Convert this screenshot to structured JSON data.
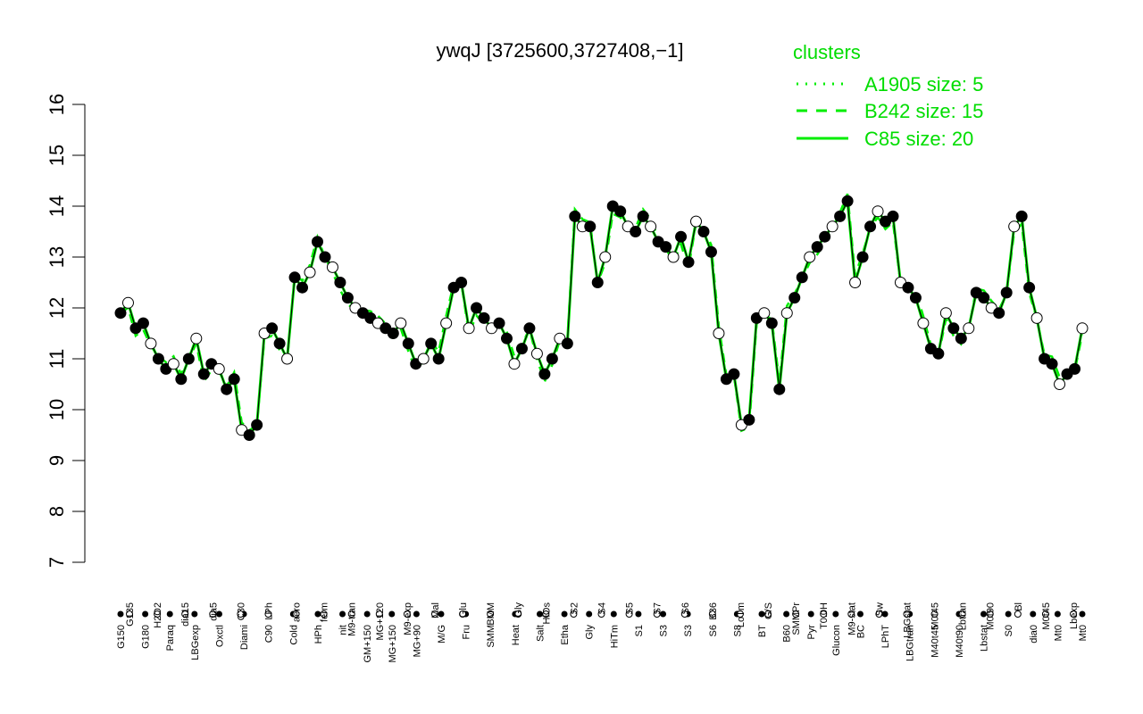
{
  "chart_data": {
    "type": "line",
    "title": "ywqJ [3725600,3727408,−1]",
    "xlabel": "",
    "ylabel": "",
    "ylim": [
      7,
      16
    ],
    "yticks": [
      "7",
      "8",
      "9",
      "10",
      "11",
      "12",
      "13",
      "14",
      "15",
      "16"
    ],
    "grid": false,
    "legend": {
      "title": "clusters",
      "position": "top-right",
      "entries": [
        {
          "label": "A1905 size: 5",
          "style": "dotted"
        },
        {
          "label": "B242 size: 15",
          "style": "dashed"
        },
        {
          "label": "C85 size: 20",
          "style": "solid"
        }
      ]
    },
    "colors": {
      "line": "#00ee00",
      "points": "#000000",
      "axis": "#000000"
    },
    "x_labels_lower": [
      "G150",
      "G180",
      "Paraq",
      "LBGexp",
      "Oxctl",
      "Diami",
      "C90",
      "Cold",
      "HPh",
      "nit",
      "GM+150",
      "MG+150",
      "MG+90",
      "M/G",
      "Fru",
      "SMM",
      "Heat",
      "Salt",
      "Etha",
      "Gly",
      "HiTm",
      "S1",
      "S3",
      "S3",
      "S6",
      "S8",
      "BT",
      "B60",
      "Pyr",
      "Glucon",
      "BC",
      "LPhT",
      "LBGtran",
      "M40t45",
      "M40t90",
      "Lbstat",
      "S0",
      "dia0",
      "Mt0",
      "Mt0"
    ],
    "x_labels_upper": [
      "G135",
      "H2O2",
      "dia15",
      "dia5",
      "C30",
      "LPh",
      "aero",
      "ferm",
      "M9-tran",
      "MG+120",
      "M9-exp",
      "Mal",
      "Glu",
      "BMM",
      "Gly",
      "HiOs",
      "S2",
      "S4",
      "S5",
      "S7",
      "S6",
      "B36",
      "LoTm",
      "G/S",
      "SMMPr",
      "T0.0H",
      "M9-stat",
      "Sw",
      "LBGstat",
      "M0t45",
      "Lbtran",
      "M0t90",
      "Bl",
      "M0t45",
      "Lbexp"
    ],
    "series": [
      {
        "values": [
          11.9,
          12.1,
          11.6,
          11.7,
          11.3,
          11.0,
          10.8,
          10.9,
          10.6,
          11.0,
          11.4,
          10.7,
          10.9,
          10.8,
          10.4,
          10.6,
          9.6,
          9.5,
          9.7,
          11.5,
          11.6,
          11.3,
          11.0,
          12.6,
          12.4,
          12.7,
          13.3,
          13.0,
          12.8,
          12.5,
          12.2,
          12.0,
          11.9,
          11.8,
          11.7,
          11.6,
          11.5,
          11.7,
          11.3,
          10.9,
          11.0,
          11.3,
          11.0,
          11.7,
          12.4,
          12.5,
          11.6,
          12.0,
          11.8,
          11.6,
          11.7,
          11.4,
          10.9,
          11.2,
          11.6,
          11.1,
          10.7,
          11.0,
          11.4,
          11.3,
          13.8,
          13.6,
          13.6,
          12.5,
          13.0,
          14.0,
          13.9,
          13.6,
          13.5,
          13.8,
          13.6,
          13.3,
          13.2,
          13.0,
          13.4,
          12.9,
          13.7,
          13.5,
          13.1,
          11.5,
          10.6,
          10.7,
          9.7,
          9.8,
          11.8,
          11.9,
          11.7,
          10.4,
          11.9,
          12.2,
          12.6,
          13.0,
          13.2,
          13.4,
          13.6,
          13.8,
          14.1,
          12.5,
          13.0,
          13.6,
          13.9,
          13.7,
          13.8,
          12.5,
          12.4,
          12.2,
          11.7,
          11.2,
          11.1,
          11.9,
          11.6,
          11.4,
          11.6,
          12.3,
          12.2,
          12.0,
          11.9,
          12.3,
          13.6,
          13.8,
          12.4,
          11.8,
          11.0,
          10.9,
          10.5,
          10.7,
          10.8,
          11.6
        ]
      }
    ]
  }
}
